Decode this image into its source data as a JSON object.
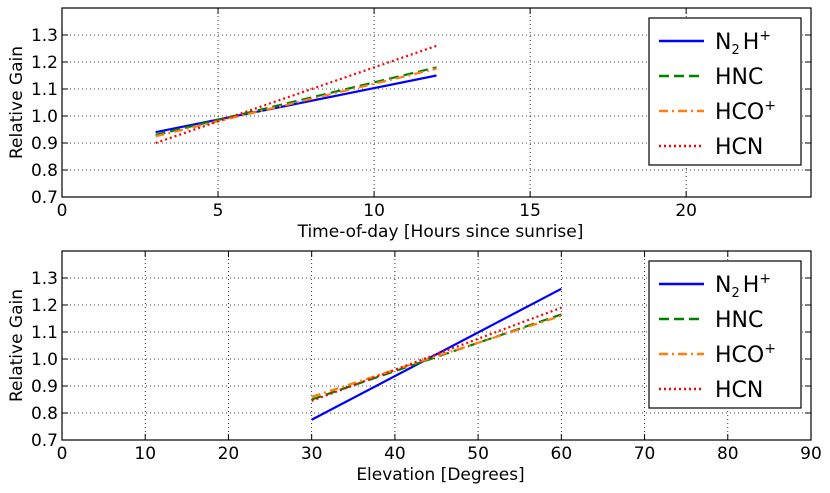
{
  "chart_data": [
    {
      "type": "line",
      "xlabel": "Time-of-day [Hours since sunrise]",
      "ylabel": "Relative Gain",
      "xlim": [
        0,
        24
      ],
      "ylim": [
        0.7,
        1.4
      ],
      "xticks": [
        "0",
        "5",
        "10",
        "15",
        "20"
      ],
      "yticks": [
        "0.7",
        "0.8",
        "0.9",
        "1.0",
        "1.1",
        "1.2",
        "1.3"
      ],
      "grid": true,
      "legend_position": "top-right",
      "series": [
        {
          "name": "N2H+",
          "color": "#0000ff",
          "style": "solid",
          "x": [
            3,
            12
          ],
          "y": [
            0.94,
            1.15
          ]
        },
        {
          "name": "HNC",
          "color": "#008000",
          "style": "dashed",
          "x": [
            3,
            12
          ],
          "y": [
            0.93,
            1.18
          ]
        },
        {
          "name": "HCO+",
          "color": "#ff7f0e",
          "style": "dashdot",
          "x": [
            3,
            12
          ],
          "y": [
            0.925,
            1.175
          ]
        },
        {
          "name": "HCN",
          "color": "#ff0000",
          "style": "dotted",
          "x": [
            3,
            12
          ],
          "y": [
            0.9,
            1.26
          ]
        }
      ]
    },
    {
      "type": "line",
      "xlabel": "Elevation [Degrees]",
      "ylabel": "Relative Gain",
      "xlim": [
        0,
        90
      ],
      "ylim": [
        0.7,
        1.4
      ],
      "xticks": [
        "0",
        "10",
        "20",
        "30",
        "40",
        "50",
        "60",
        "70",
        "80",
        "90"
      ],
      "yticks": [
        "0.7",
        "0.8",
        "0.9",
        "1.0",
        "1.1",
        "1.2",
        "1.3"
      ],
      "grid": true,
      "legend_position": "top-right",
      "series": [
        {
          "name": "N2H+",
          "color": "#0000ff",
          "style": "solid",
          "x": [
            30,
            60
          ],
          "y": [
            0.775,
            1.26
          ]
        },
        {
          "name": "HNC",
          "color": "#008000",
          "style": "dashed",
          "x": [
            30,
            60
          ],
          "y": [
            0.85,
            1.165
          ]
        },
        {
          "name": "HCO+",
          "color": "#ff7f0e",
          "style": "dashdot",
          "x": [
            30,
            60
          ],
          "y": [
            0.86,
            1.16
          ]
        },
        {
          "name": "HCN",
          "color": "#ff0000",
          "style": "dotted",
          "x": [
            30,
            60
          ],
          "y": [
            0.845,
            1.19
          ]
        }
      ]
    }
  ]
}
